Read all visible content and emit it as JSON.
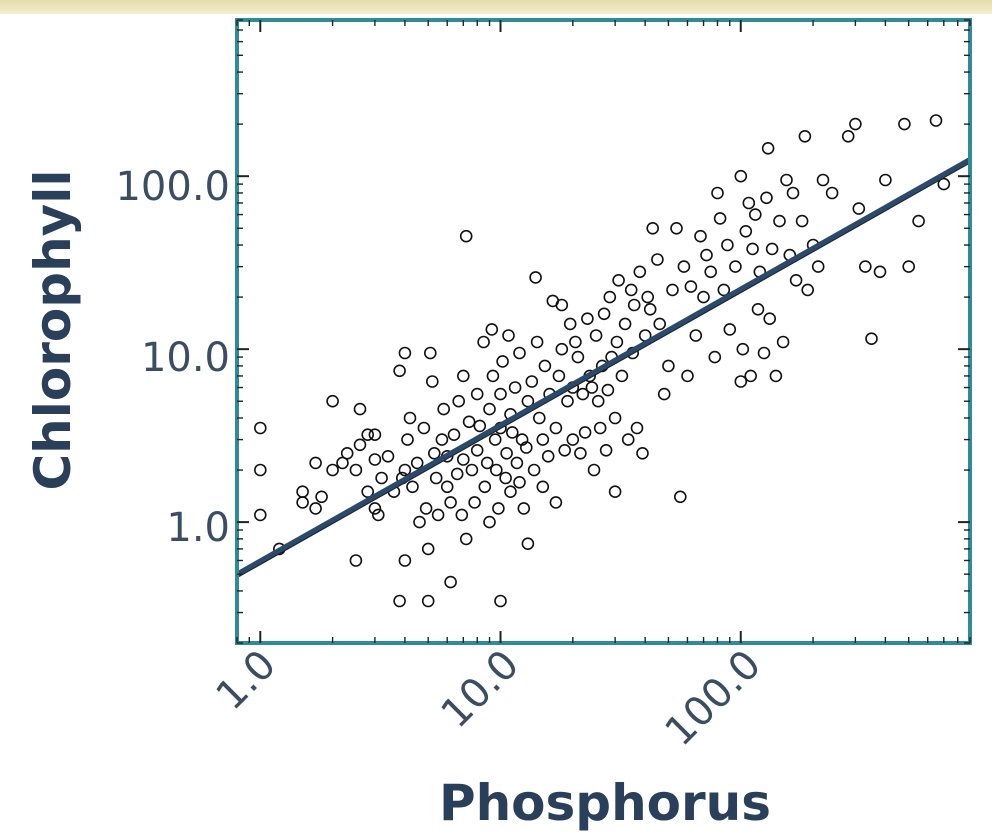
{
  "chart_data": {
    "type": "scatter",
    "x_scale": "log",
    "y_scale": "log",
    "xlabel": "Phosphorus",
    "ylabel": "Chlorophyll",
    "xlim": [
      0.8,
      900
    ],
    "ylim": [
      0.2,
      800
    ],
    "x_ticks": [
      {
        "value": 1,
        "label": "1.0"
      },
      {
        "value": 10,
        "label": "10.0"
      },
      {
        "value": 100,
        "label": "100.0"
      }
    ],
    "y_ticks": [
      {
        "value": 1,
        "label": "1.0"
      },
      {
        "value": 10,
        "label": "10.0"
      },
      {
        "value": 100,
        "label": "100.0"
      }
    ],
    "grid": false,
    "fit_line": {
      "x": [
        0.8,
        900
      ],
      "y": [
        0.5,
        125
      ]
    },
    "frame_color": "#2f8c96",
    "line_color": "#2b4a6b",
    "points": [
      [
        1.0,
        3.5
      ],
      [
        1.0,
        2.0
      ],
      [
        1.0,
        1.1
      ],
      [
        1.2,
        0.7
      ],
      [
        1.5,
        1.3
      ],
      [
        1.5,
        1.5
      ],
      [
        1.7,
        1.2
      ],
      [
        1.7,
        2.2
      ],
      [
        1.8,
        1.4
      ],
      [
        2.0,
        5.0
      ],
      [
        2.0,
        2.0
      ],
      [
        2.2,
        2.2
      ],
      [
        2.3,
        2.5
      ],
      [
        2.5,
        2.0
      ],
      [
        2.5,
        0.6
      ],
      [
        2.6,
        2.8
      ],
      [
        2.6,
        4.5
      ],
      [
        2.8,
        1.5
      ],
      [
        2.8,
        3.2
      ],
      [
        3.0,
        1.2
      ],
      [
        3.0,
        2.3
      ],
      [
        3.0,
        3.2
      ],
      [
        3.1,
        1.1
      ],
      [
        3.2,
        1.8
      ],
      [
        3.4,
        2.4
      ],
      [
        3.6,
        1.5
      ],
      [
        3.8,
        7.5
      ],
      [
        3.8,
        0.35
      ],
      [
        3.9,
        1.8
      ],
      [
        4.0,
        2.0
      ],
      [
        4.0,
        9.5
      ],
      [
        4.0,
        0.6
      ],
      [
        4.1,
        3.0
      ],
      [
        4.2,
        4.0
      ],
      [
        4.3,
        1.6
      ],
      [
        4.5,
        2.2
      ],
      [
        4.6,
        1.0
      ],
      [
        4.8,
        3.5
      ],
      [
        4.9,
        1.2
      ],
      [
        5.0,
        0.35
      ],
      [
        5.0,
        0.7
      ],
      [
        5.1,
        9.5
      ],
      [
        5.2,
        6.5
      ],
      [
        5.3,
        2.5
      ],
      [
        5.4,
        1.8
      ],
      [
        5.5,
        1.1
      ],
      [
        5.7,
        3.0
      ],
      [
        5.8,
        4.5
      ],
      [
        6.0,
        1.6
      ],
      [
        6.0,
        2.4
      ],
      [
        6.2,
        1.3
      ],
      [
        6.2,
        0.45
      ],
      [
        6.4,
        3.2
      ],
      [
        6.6,
        1.9
      ],
      [
        6.7,
        5.0
      ],
      [
        6.9,
        1.1
      ],
      [
        7.0,
        2.3
      ],
      [
        7.0,
        7.0
      ],
      [
        7.2,
        45.0
      ],
      [
        7.2,
        0.8
      ],
      [
        7.4,
        3.8
      ],
      [
        7.6,
        2.0
      ],
      [
        7.8,
        1.3
      ],
      [
        8.0,
        5.5
      ],
      [
        8.0,
        2.6
      ],
      [
        8.2,
        3.6
      ],
      [
        8.5,
        11.0
      ],
      [
        8.6,
        1.6
      ],
      [
        8.8,
        2.2
      ],
      [
        9.0,
        1.0
      ],
      [
        9.0,
        4.5
      ],
      [
        9.2,
        13.0
      ],
      [
        9.3,
        7.0
      ],
      [
        9.5,
        3.0
      ],
      [
        9.6,
        2.0
      ],
      [
        9.8,
        1.2
      ],
      [
        10.0,
        0.35
      ],
      [
        10.0,
        5.5
      ],
      [
        10.0,
        3.5
      ],
      [
        10.2,
        8.5
      ],
      [
        10.5,
        1.8
      ],
      [
        10.6,
        2.5
      ],
      [
        10.8,
        12.0
      ],
      [
        11.0,
        1.5
      ],
      [
        11.0,
        4.2
      ],
      [
        11.2,
        3.3
      ],
      [
        11.5,
        6.0
      ],
      [
        11.7,
        2.2
      ],
      [
        12.0,
        1.7
      ],
      [
        12.0,
        9.5
      ],
      [
        12.3,
        3.0
      ],
      [
        12.5,
        1.2
      ],
      [
        12.8,
        2.7
      ],
      [
        13.0,
        0.75
      ],
      [
        13.0,
        5.0
      ],
      [
        13.5,
        6.5
      ],
      [
        13.8,
        2.0
      ],
      [
        14.0,
        26.0
      ],
      [
        14.2,
        11.0
      ],
      [
        14.5,
        4.0
      ],
      [
        15.0,
        3.0
      ],
      [
        15.0,
        1.6
      ],
      [
        15.3,
        8.0
      ],
      [
        15.8,
        2.4
      ],
      [
        16.0,
        5.5
      ],
      [
        16.5,
        19.0
      ],
      [
        17.0,
        3.5
      ],
      [
        17.0,
        1.3
      ],
      [
        17.5,
        7.0
      ],
      [
        18.0,
        18.0
      ],
      [
        18.0,
        10.0
      ],
      [
        18.5,
        2.6
      ],
      [
        19.0,
        5.0
      ],
      [
        19.5,
        14.0
      ],
      [
        20.0,
        6.0
      ],
      [
        20.0,
        3.0
      ],
      [
        20.5,
        11.0
      ],
      [
        21.0,
        9.0
      ],
      [
        21.5,
        2.5
      ],
      [
        22.0,
        5.5
      ],
      [
        22.5,
        3.3
      ],
      [
        23.0,
        15.0
      ],
      [
        23.5,
        7.0
      ],
      [
        24.0,
        6.0
      ],
      [
        24.5,
        2.0
      ],
      [
        25.0,
        12.0
      ],
      [
        25.5,
        5.0
      ],
      [
        26.0,
        3.5
      ],
      [
        26.5,
        8.0
      ],
      [
        27.0,
        16.0
      ],
      [
        27.5,
        2.6
      ],
      [
        28.0,
        5.8
      ],
      [
        28.5,
        20.0
      ],
      [
        29.0,
        9.0
      ],
      [
        30.0,
        1.5
      ],
      [
        30.0,
        4.0
      ],
      [
        30.5,
        11.0
      ],
      [
        31.0,
        25.0
      ],
      [
        32.0,
        7.0
      ],
      [
        33.0,
        14.0
      ],
      [
        34.0,
        3.0
      ],
      [
        35.0,
        22.0
      ],
      [
        35.5,
        9.5
      ],
      [
        36.0,
        18.0
      ],
      [
        37.0,
        3.5
      ],
      [
        38.0,
        28.0
      ],
      [
        39.0,
        2.5
      ],
      [
        40.0,
        12.0
      ],
      [
        41.0,
        20.0
      ],
      [
        42.0,
        17.0
      ],
      [
        43.0,
        50.0
      ],
      [
        45.0,
        33.0
      ],
      [
        46.0,
        14.0
      ],
      [
        48.0,
        5.5
      ],
      [
        50.0,
        8.0
      ],
      [
        52.0,
        22.0
      ],
      [
        54.0,
        50.0
      ],
      [
        56.0,
        1.4
      ],
      [
        58.0,
        30.0
      ],
      [
        60.0,
        7.0
      ],
      [
        62.0,
        23.0
      ],
      [
        65.0,
        12.0
      ],
      [
        68.0,
        45.0
      ],
      [
        70.0,
        20.0
      ],
      [
        72.0,
        35.0
      ],
      [
        75.0,
        28.0
      ],
      [
        78.0,
        9.0
      ],
      [
        80.0,
        80.0
      ],
      [
        82.0,
        57.0
      ],
      [
        85.0,
        22.0
      ],
      [
        88.0,
        40.0
      ],
      [
        90.0,
        13.0
      ],
      [
        95.0,
        30.0
      ],
      [
        100.0,
        6.5
      ],
      [
        100.0,
        100.0
      ],
      [
        102.0,
        10.0
      ],
      [
        105.0,
        48.0
      ],
      [
        108.0,
        70.0
      ],
      [
        110.0,
        7.0
      ],
      [
        112.0,
        38.0
      ],
      [
        115.0,
        60.0
      ],
      [
        118.0,
        17.0
      ],
      [
        120.0,
        28.0
      ],
      [
        125.0,
        9.5
      ],
      [
        128.0,
        75.0
      ],
      [
        130.0,
        145.0
      ],
      [
        132.0,
        15.0
      ],
      [
        135.0,
        38.0
      ],
      [
        140.0,
        7.0
      ],
      [
        145.0,
        55.0
      ],
      [
        150.0,
        11.0
      ],
      [
        155.0,
        95.0
      ],
      [
        160.0,
        35.0
      ],
      [
        165.0,
        80.0
      ],
      [
        170.0,
        25.0
      ],
      [
        180.0,
        55.0
      ],
      [
        185.0,
        170.0
      ],
      [
        190.0,
        22.0
      ],
      [
        200.0,
        40.0
      ],
      [
        210.0,
        30.0
      ],
      [
        220.0,
        95.0
      ],
      [
        240.0,
        80.0
      ],
      [
        280.0,
        170.0
      ],
      [
        300.0,
        200.0
      ],
      [
        310.0,
        65.0
      ],
      [
        330.0,
        30.0
      ],
      [
        350.0,
        11.5
      ],
      [
        380.0,
        28.0
      ],
      [
        400.0,
        95.0
      ],
      [
        480.0,
        200.0
      ],
      [
        500.0,
        30.0
      ],
      [
        550.0,
        55.0
      ],
      [
        650.0,
        210.0
      ],
      [
        700.0,
        90.0
      ]
    ]
  }
}
